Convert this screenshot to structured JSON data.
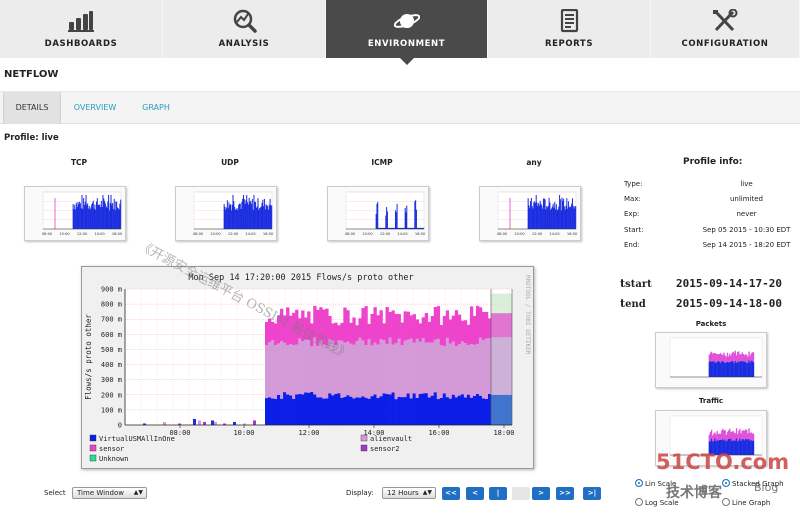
{
  "nav": [
    {
      "label": "DASHBOARDS",
      "icon": "bar-chart-icon",
      "active": false
    },
    {
      "label": "ANALYSIS",
      "icon": "magnifier-chart-icon",
      "active": false
    },
    {
      "label": "ENVIRONMENT",
      "icon": "planet-icon",
      "active": true
    },
    {
      "label": "REPORTS",
      "icon": "document-icon",
      "active": false
    },
    {
      "label": "CONFIGURATION",
      "icon": "tools-icon",
      "active": false
    }
  ],
  "page_title": "NETFLOW",
  "subtabs": [
    {
      "label": "DETAILS",
      "active": true
    },
    {
      "label": "OVERVIEW",
      "active": false
    },
    {
      "label": "GRAPH",
      "active": false
    }
  ],
  "profile_label": "Profile: live",
  "thumbnails": [
    {
      "title": "TCP",
      "x_ticks": [
        "08:00",
        "10:00",
        "12:00",
        "14:00",
        "16:00"
      ]
    },
    {
      "title": "UDP",
      "x_ticks": [
        "08:00",
        "10:00",
        "12:00",
        "14:00",
        "16:00"
      ]
    },
    {
      "title": "ICMP",
      "x_ticks": [
        "08:00",
        "10:00",
        "12:00",
        "14:00",
        "16:00"
      ]
    },
    {
      "title": "any",
      "x_ticks": [
        "08:00",
        "10:00",
        "12:00",
        "14:00",
        "16:00"
      ]
    }
  ],
  "profile_info": {
    "title": "Profile info:",
    "rows": [
      {
        "key": "Type:",
        "value": "live"
      },
      {
        "key": "Max:",
        "value": "unlimited"
      },
      {
        "key": "Exp:",
        "value": "never"
      },
      {
        "key": "Start:",
        "value": "Sep 05 2015 - 10:30 EDT"
      },
      {
        "key": "End:",
        "value": "Sep 14 2015 - 18:20 EDT"
      }
    ]
  },
  "tstart": {
    "label": "t",
    "sub": "start",
    "value": "2015-09-14-17-20"
  },
  "tend": {
    "label": "t",
    "sub": "end",
    "value": "2015-09-14-18-00"
  },
  "mini_charts": [
    {
      "title": "Packets"
    },
    {
      "title": "Traffic"
    }
  ],
  "chart_data": {
    "type": "area",
    "title": "Mon Sep 14 17:20:00 2015 Flows/s proto other",
    "ylabel": "Flows/s proto other",
    "side_label": "RRDTOOL / TOBI OETIKER",
    "y_ticks": [
      "0",
      "100 m",
      "200 m",
      "300 m",
      "400 m",
      "500 m",
      "600 m",
      "700 m",
      "800 m",
      "900 m"
    ],
    "ylim": [
      0,
      0.9
    ],
    "x_ticks": [
      "08:00",
      "10:00",
      "12:00",
      "14:00",
      "16:00",
      "18:00"
    ],
    "series": [
      {
        "name": "VirtualUSMAllInOne",
        "color": "#0a1ee8"
      },
      {
        "name": "sensor",
        "color": "#ee44cc"
      },
      {
        "name": "Unknown",
        "color": "#22dd99"
      },
      {
        "name": "alienvault",
        "color": "#d49ad8"
      },
      {
        "name": "sensor2",
        "color": "#aa33cc"
      }
    ],
    "layers_after_1030": {
      "blue_top": 0.2,
      "pink_top": 0.57,
      "magenta_top": 0.72
    }
  },
  "controls": {
    "select_label": "Select",
    "select_value": "Time Window",
    "display_label": "Display:",
    "display_value": "12 Hours",
    "pager": [
      "<<",
      "<",
      "|",
      "",
      ">",
      ">>",
      ">|"
    ],
    "radios": [
      {
        "label": "Lin Scale",
        "checked": true
      },
      {
        "label": "Stacked Graph",
        "checked": true
      },
      {
        "label": "Log Scale",
        "checked": false
      },
      {
        "label": "Line Graph",
        "checked": false
      }
    ]
  },
  "watermark": {
    "brand": "51CTO.com",
    "cn": "技术博客",
    "blog": "Blog",
    "overlay": "《开源安全运维平台 OSSIM 最佳实践》"
  }
}
